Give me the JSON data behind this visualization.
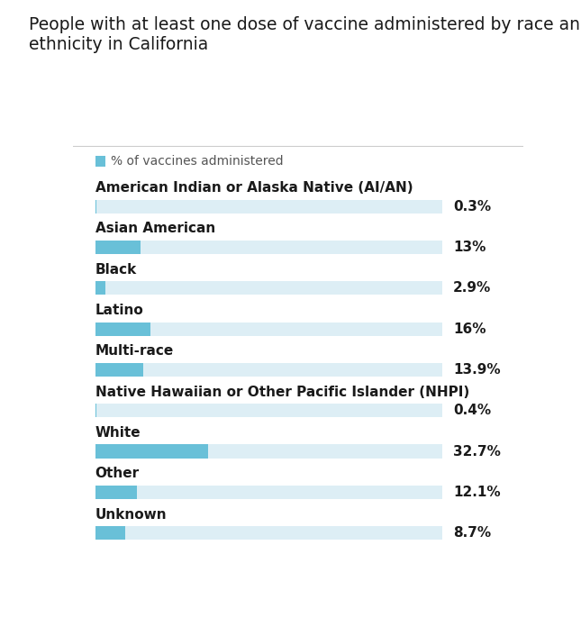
{
  "title": "People with at least one dose of vaccine administered by race and\nethnicity in California",
  "legend_label": "% of vaccines administered",
  "categories": [
    "American Indian or Alaska Native (AI/AN)",
    "Asian American",
    "Black",
    "Latino",
    "Multi-race",
    "Native Hawaiian or Other Pacific Islander (NHPI)",
    "White",
    "Other",
    "Unknown"
  ],
  "values": [
    0.3,
    13.0,
    2.9,
    16.0,
    13.9,
    0.4,
    32.7,
    12.1,
    8.7
  ],
  "labels": [
    "0.3%",
    "13%",
    "2.9%",
    "16%",
    "13.9%",
    "0.4%",
    "32.7%",
    "12.1%",
    "8.7%"
  ],
  "max_value": 100,
  "bar_color": "#69c0d8",
  "bg_bar_color": "#ddeef5",
  "background_color": "#ffffff",
  "title_fontsize": 13.5,
  "label_fontsize": 11,
  "value_fontsize": 11,
  "legend_fontsize": 10
}
